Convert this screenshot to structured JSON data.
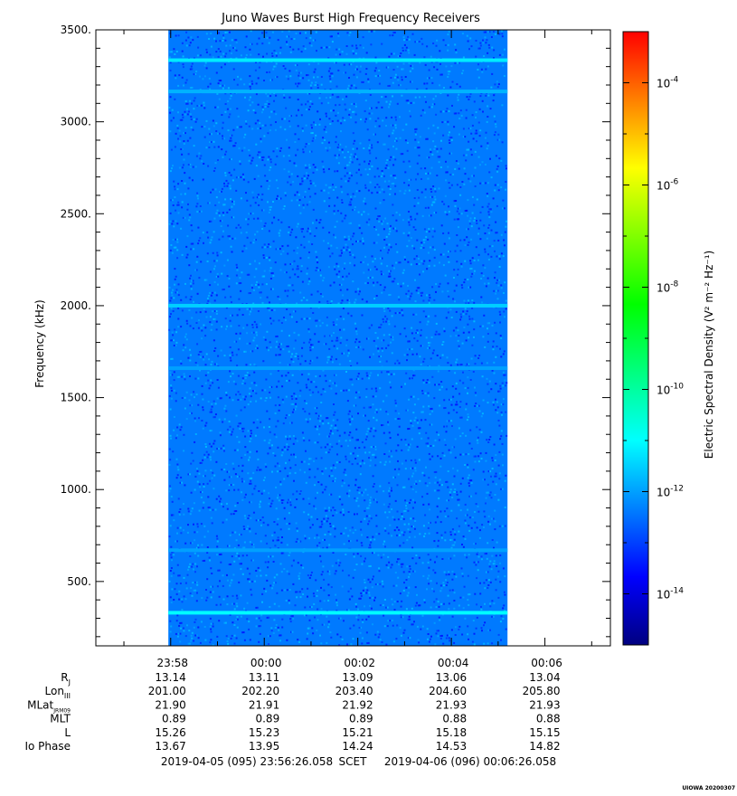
{
  "chart_data": {
    "type": "heatmap",
    "title": "Juno Waves Burst High Frequency Receivers",
    "ylabel": "Frequency (kHz)",
    "ylim": [
      150,
      3500
    ],
    "y_ticks": [
      "500.",
      "1000.",
      "1500.",
      "2000.",
      "2500.",
      "3000.",
      "3500."
    ],
    "y_tick_values": [
      500,
      1000,
      1500,
      2000,
      2500,
      3000,
      3500
    ],
    "x_axis": {
      "start_label": "2019-04-05 (095) 23:56:26.058",
      "end_label": "2019-04-06 (096) 00:06:26.058",
      "scet_label": "SCET",
      "data_time_range_minutes": [
        1.55,
        8.8
      ],
      "tick_minutes": [
        1.6,
        3.6,
        5.6,
        7.6,
        9.6
      ],
      "tick_labels": [
        "23:58",
        "00:00",
        "00:02",
        "00:04",
        "00:06"
      ]
    },
    "ephemeris": {
      "rows": [
        {
          "label": "R",
          "sub": "J",
          "values": [
            "13.14",
            "13.11",
            "13.09",
            "13.06",
            "13.04"
          ]
        },
        {
          "label": "Lon",
          "sub": "III",
          "values": [
            "201.00",
            "202.20",
            "203.40",
            "204.60",
            "205.80"
          ]
        },
        {
          "label": "MLat",
          "sub": "JRM09",
          "values": [
            "21.90",
            "21.91",
            "21.92",
            "21.93",
            "21.93"
          ]
        },
        {
          "label": "MLT",
          "sub": "",
          "values": [
            "0.89",
            "0.89",
            "0.89",
            "0.88",
            "0.88"
          ]
        },
        {
          "label": "L",
          "sub": "",
          "values": [
            "15.26",
            "15.23",
            "15.21",
            "15.18",
            "15.15"
          ]
        },
        {
          "label": "Io Phase",
          "sub": "",
          "values": [
            "13.67",
            "13.95",
            "14.24",
            "14.53",
            "14.82"
          ]
        }
      ]
    },
    "colorbar": {
      "label": "Electric Spectral Density (V² m⁻² Hz⁻¹)",
      "log_min": -15.0,
      "log_max": -3.0,
      "tick_exponents": [
        -14,
        -12,
        -10,
        -8,
        -6,
        -4
      ],
      "tick_base": "10",
      "colors": [
        "#000080",
        "#0000ff",
        "#0080ff",
        "#00ffff",
        "#00ff80",
        "#00ff00",
        "#80ff00",
        "#ffff00",
        "#ff8000",
        "#ff0000"
      ]
    },
    "background_level_log": -12.4,
    "emission_lines": [
      {
        "freq_khz": 330,
        "level_log": -11.0
      },
      {
        "freq_khz": 2000,
        "level_log": -11.5
      },
      {
        "freq_khz": 3165,
        "level_log": -11.8
      },
      {
        "freq_khz": 3335,
        "level_log": -11.2
      },
      {
        "freq_khz": 1660,
        "level_log": -12.0
      },
      {
        "freq_khz": 670,
        "level_log": -12.0
      }
    ],
    "grid": false
  },
  "footer": {
    "stamp": "UIOWA 20200307"
  }
}
